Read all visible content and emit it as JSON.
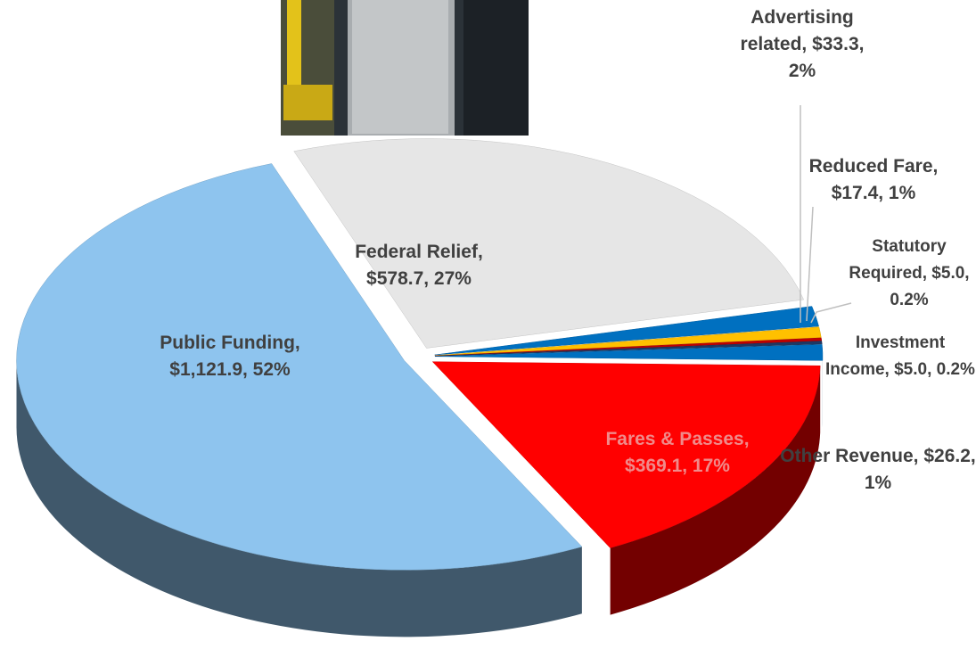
{
  "chart_data": {
    "type": "pie",
    "labels": [
      "Federal Relief, $578.7, 27%",
      "Advertising related, $33.3, 2%",
      "Reduced Fare, $17.4, 1%",
      "Statutory Required, $5.0, 0.2%",
      "Investment Income, $5.0, 0.2%",
      "Other Revenue, $26.2, 1%",
      "Fares & Passes, $369.1, 17%",
      "Public Funding, $1,121.9, 52%"
    ],
    "values": [
      578.7,
      33.3,
      17.4,
      5.0,
      5.0,
      26.2,
      369.1,
      1121.9
    ],
    "colors": [
      "#e6e6e6",
      "#0070c0",
      "#ffc000",
      "#c00000",
      "#1f3864",
      "#0070c0",
      "#ff0000",
      "#8ec4ee"
    ]
  }
}
